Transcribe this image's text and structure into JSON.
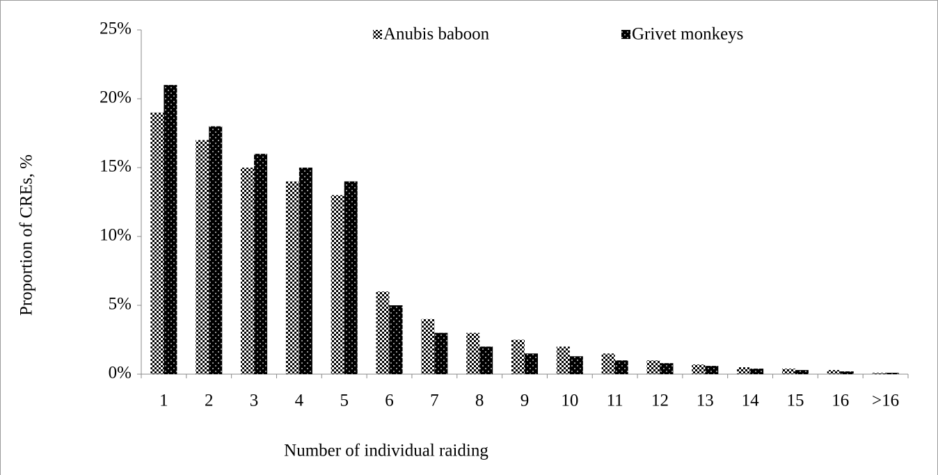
{
  "chart_data": {
    "type": "bar",
    "y_label": "Proportion of CREs, %",
    "x_label": "Number of individual raiding",
    "categories": [
      "1",
      "2",
      "3",
      "4",
      "5",
      "6",
      "7",
      "8",
      "9",
      "10",
      "11",
      "12",
      "13",
      "14",
      "15",
      "16",
      ">16"
    ],
    "series": [
      {
        "name": "Anubis baboon",
        "color": "#000000",
        "values": [
          19,
          17,
          15,
          14,
          13,
          6,
          4,
          3,
          2.5,
          2,
          1.5,
          1,
          0.7,
          0.5,
          0.4,
          0.3,
          0.1
        ]
      },
      {
        "name": "Grivet monkeys",
        "color": "#000000",
        "values": [
          21,
          18,
          16,
          15,
          14,
          5,
          3,
          2,
          1.5,
          1.3,
          1,
          0.8,
          0.6,
          0.4,
          0.3,
          0.2,
          0.1
        ]
      }
    ],
    "ylim": [
      0,
      25
    ],
    "yticks": [
      {
        "value": 0,
        "label": "0%"
      },
      {
        "value": 5,
        "label": "5%"
      },
      {
        "value": 10,
        "label": "10%"
      },
      {
        "value": 15,
        "label": "15%"
      },
      {
        "value": 20,
        "label": "20%"
      },
      {
        "value": 25,
        "label": "25%"
      }
    ],
    "legend": "top"
  }
}
